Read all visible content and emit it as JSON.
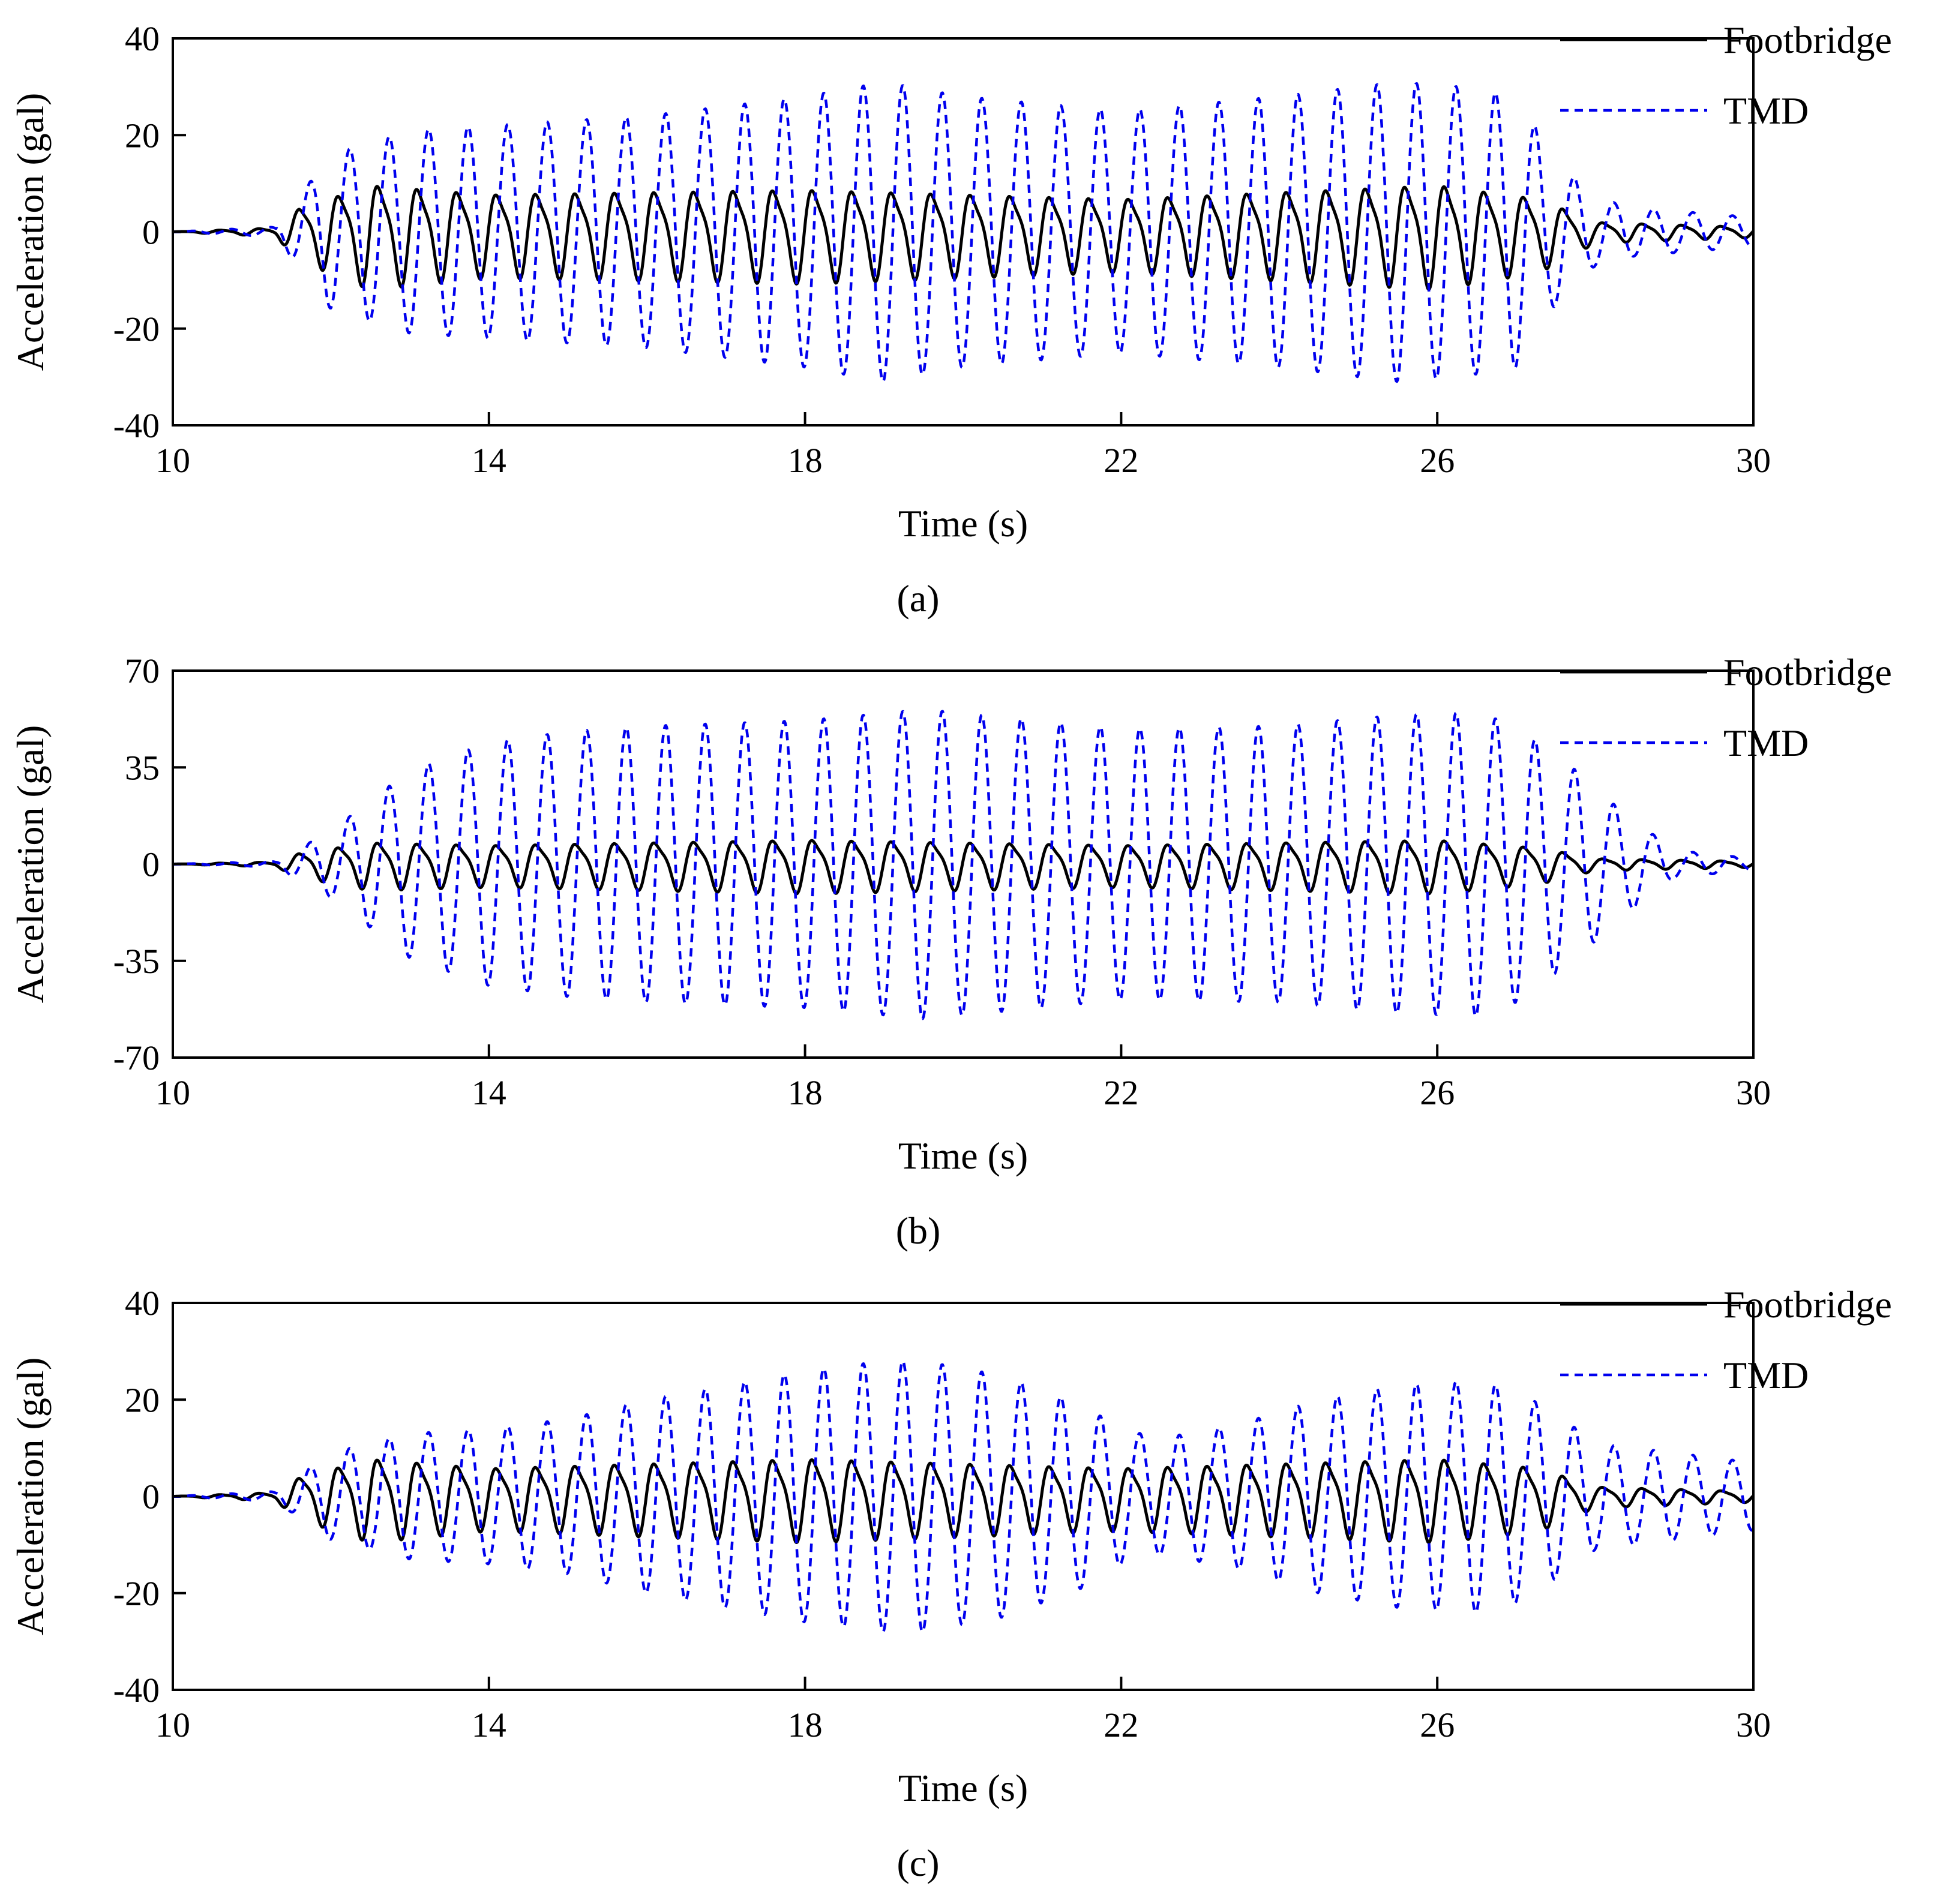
{
  "chart_data": [
    {
      "type": "line",
      "panel_label": "(a)",
      "xlabel": "Time (s)",
      "ylabel": "Acceleration (gal)",
      "xlim": [
        10,
        30
      ],
      "ylim": [
        -40,
        40
      ],
      "x_ticks": [
        10,
        14,
        18,
        22,
        26,
        30
      ],
      "y_ticks": [
        -40,
        -20,
        0,
        20,
        40
      ],
      "legend_position": "top-right",
      "excitation_frequency_hz": 2.0,
      "series": [
        {
          "name": "Footbridge",
          "color": "#000000",
          "style": "solid",
          "envelope": {
            "t": [
              10,
              11.3,
              11.6,
              12.5,
              14,
              18,
              22,
              26,
              27.3,
              28,
              29,
              30
            ],
            "amp": [
              0,
              0.8,
              5,
              10,
              8,
              9,
              7,
              10,
              7,
              2,
              1.5,
              1
            ]
          }
        },
        {
          "name": "TMD",
          "color": "#0000ee",
          "style": "dashed",
          "envelope": {
            "t": [
              10,
              11.3,
              12,
              13,
              14,
              16,
              18,
              19,
              20,
              22,
              24,
              25.5,
              26.3,
              27,
              27.5,
              28,
              28.5,
              30
            ],
            "amp": [
              0,
              1,
              16,
              21,
              22,
              24,
              28,
              31,
              28,
              25,
              28,
              31,
              30,
              28,
              15,
              7,
              5,
              3
            ]
          }
        }
      ]
    },
    {
      "type": "line",
      "panel_label": "(b)",
      "xlabel": "Time (s)",
      "ylabel": "Acceleration (gal)",
      "xlim": [
        10,
        30
      ],
      "ylim": [
        -70,
        70
      ],
      "x_ticks": [
        10,
        14,
        18,
        22,
        26,
        30
      ],
      "y_ticks": [
        -70,
        -35,
        0,
        35,
        70
      ],
      "legend_position": "top-right",
      "excitation_frequency_hz": 2.0,
      "series": [
        {
          "name": "Footbridge",
          "color": "#000000",
          "style": "solid",
          "envelope": {
            "t": [
              10,
              11.3,
              11.6,
              12.5,
              14,
              18,
              22,
              26,
              27.3,
              28,
              29,
              30
            ],
            "amp": [
              0,
              0.8,
              4,
              8,
              7,
              9,
              7,
              9,
              6,
              2,
              1.5,
              1
            ]
          }
        },
        {
          "name": "TMD",
          "color": "#0000ee",
          "style": "dashed",
          "envelope": {
            "t": [
              10,
              11.3,
              12,
              13,
              14,
              15,
              16,
              18,
              19.5,
              21,
              22,
              24,
              25.5,
              26.5,
              27,
              27.8,
              28.3,
              29,
              30
            ],
            "amp": [
              0,
              1,
              12,
              34,
              44,
              48,
              50,
              52,
              56,
              52,
              49,
              50,
              54,
              55,
              50,
              33,
              20,
              5,
              2
            ]
          }
        }
      ]
    },
    {
      "type": "line",
      "panel_label": "(c)",
      "xlabel": "Time (s)",
      "ylabel": "Acceleration (gal)",
      "xlim": [
        10,
        30
      ],
      "ylim": [
        -40,
        40
      ],
      "x_ticks": [
        10,
        14,
        18,
        22,
        26,
        30
      ],
      "y_ticks": [
        -40,
        -20,
        0,
        20,
        40
      ],
      "legend_position": "top-right",
      "excitation_frequency_hz": 2.0,
      "series": [
        {
          "name": "Footbridge",
          "color": "#000000",
          "style": "solid",
          "envelope": {
            "t": [
              10,
              11.3,
              11.6,
              12.5,
              14,
              18,
              22,
              26,
              27.3,
              28,
              29,
              30
            ],
            "amp": [
              0,
              0.8,
              4,
              8,
              6,
              8,
              6,
              8,
              6,
              2,
              1.5,
              1
            ]
          }
        },
        {
          "name": "TMD",
          "color": "#0000ee",
          "style": "dashed",
          "envelope": {
            "t": [
              10,
              11.3,
              12,
              13,
              14,
              15,
              16,
              17,
              18,
              19,
              19.5,
              20.5,
              21.5,
              22,
              22.5,
              23.5,
              24.5,
              25.5,
              26.5,
              27,
              27.6,
              28,
              29,
              30
            ],
            "amp": [
              0,
              1,
              9,
              13,
              14,
              16,
              20,
              23,
              26,
              28,
              28,
              25,
              19,
              14,
              12,
              15,
              20,
              23,
              24,
              22,
              16,
              11,
              9,
              7
            ]
          }
        }
      ]
    }
  ]
}
